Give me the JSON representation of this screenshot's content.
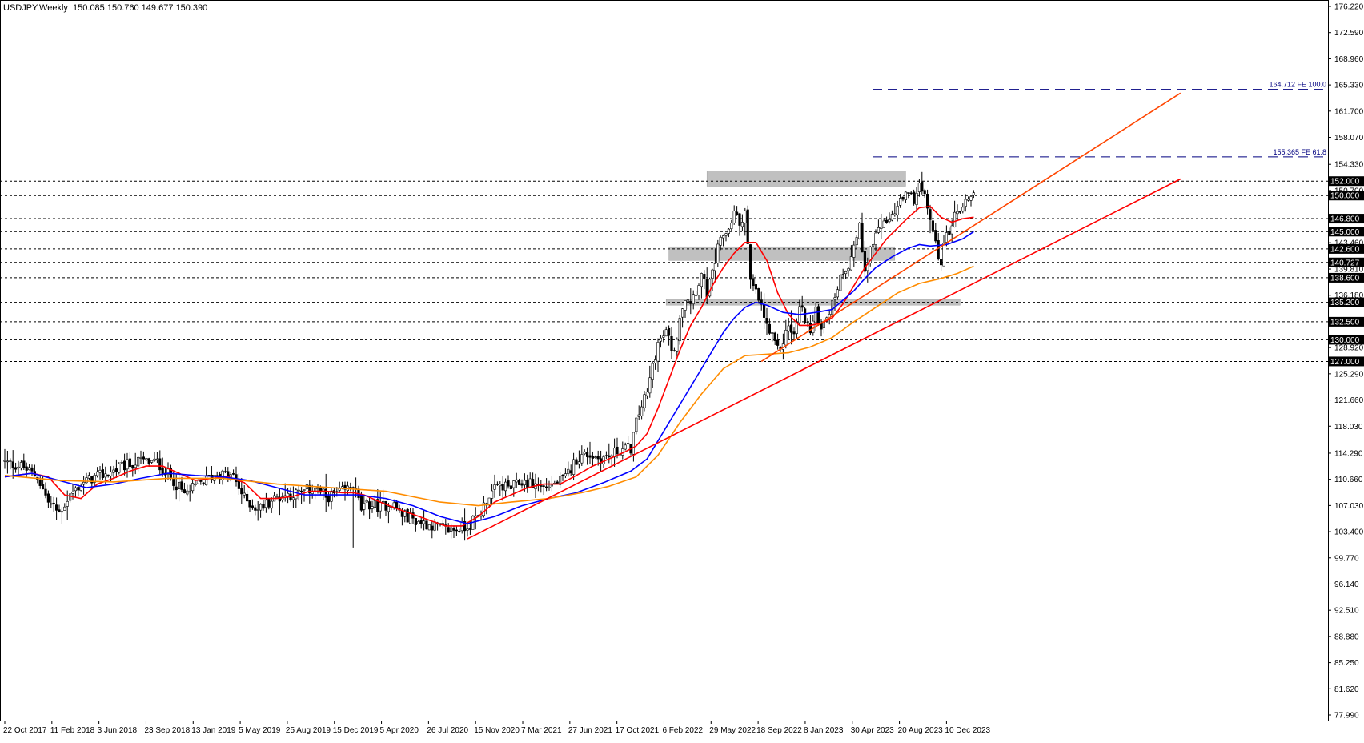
{
  "header": {
    "symbol_label": "USDJPY,Weekly",
    "ohlc_values": "150.085 150.760 149.677 150.390"
  },
  "chart_data": {
    "type": "candlestick",
    "symbol": "USDJPY",
    "timeframe": "Weekly",
    "last_bar": {
      "open": 150.085,
      "high": 150.76,
      "low": 149.677,
      "close": 150.39
    },
    "ylim": [
      77.99,
      176.22
    ],
    "y_ticks": [
      "176.220",
      "172.590",
      "168.960",
      "165.330",
      "161.700",
      "158.070",
      "154.330",
      "150.700",
      "146.800",
      "143.460",
      "139.810",
      "136.180",
      "132.500",
      "128.920",
      "125.290",
      "121.660",
      "118.030",
      "114.290",
      "110.660",
      "107.030",
      "103.400",
      "99.770",
      "96.140",
      "92.510",
      "88.880",
      "85.250",
      "81.620",
      "77.990"
    ],
    "x_tick_labels": [
      "22 Oct 2017",
      "11 Feb 2018",
      "3 Jun 2018",
      "23 Sep 2018",
      "13 Jan 2019",
      "5 May 2019",
      "25 Aug 2019",
      "15 Dec 2019",
      "5 Apr 2020",
      "26 Jul 2020",
      "15 Nov 2020",
      "7 Mar 2021",
      "27 Jun 2021",
      "17 Oct 2021",
      "6 Feb 2022",
      "29 May 2022",
      "18 Sep 2022",
      "8 Jan 2023",
      "30 Apr 2023",
      "20 Aug 2023",
      "10 Dec 2023"
    ],
    "horizontal_levels": [
      {
        "value": 152.0,
        "label": "152.000"
      },
      {
        "value": 150.0,
        "label": "150.000"
      },
      {
        "value": 146.8,
        "label": "146.800"
      },
      {
        "value": 145.0,
        "label": "145.000"
      },
      {
        "value": 142.6,
        "label": "142.600"
      },
      {
        "value": 140.727,
        "label": "140.727"
      },
      {
        "value": 138.6,
        "label": "138.600"
      },
      {
        "value": 135.2,
        "label": "135.200"
      },
      {
        "value": 132.5,
        "label": "132.500"
      },
      {
        "value": 130.0,
        "label": "130.000"
      },
      {
        "value": 127.0,
        "label": "127.000"
      }
    ],
    "fibo_expansion": [
      {
        "value": 164.712,
        "label": "164.712 FE 100.0"
      },
      {
        "value": 155.365,
        "label": "155.365 FE 61.8"
      }
    ],
    "zones": [
      {
        "week_start": 258,
        "week_end": 331,
        "low": 151.3,
        "high": 153.4
      },
      {
        "week_start": 244,
        "week_end": 327,
        "low": 141.0,
        "high": 142.9
      },
      {
        "week_start": 243,
        "week_end": 351,
        "low": 134.8,
        "high": 135.6
      }
    ],
    "trendlines": [
      {
        "color": "#ff0000",
        "from": {
          "week": 170,
          "price": 102.4
        },
        "to": {
          "week": 432,
          "price": 152.3
        }
      },
      {
        "color": "#ff4500",
        "from": {
          "week": 278,
          "price": 127.0
        },
        "to": {
          "week": 432,
          "price": 164.2
        }
      }
    ],
    "series": [
      {
        "kind": "close",
        "points": [
          [
            0,
            113.0
          ],
          [
            6,
            112.5
          ],
          [
            12,
            111.0
          ],
          [
            16,
            107.5
          ],
          [
            20,
            106.0
          ],
          [
            24,
            108.5
          ],
          [
            28,
            110.0
          ],
          [
            32,
            110.8
          ],
          [
            38,
            111.5
          ],
          [
            44,
            112.5
          ],
          [
            50,
            113.2
          ],
          [
            56,
            113.0
          ],
          [
            62,
            110.5
          ],
          [
            66,
            108.5
          ],
          [
            72,
            110.2
          ],
          [
            78,
            111.5
          ],
          [
            84,
            111.0
          ],
          [
            88,
            108.0
          ],
          [
            93,
            106.5
          ],
          [
            98,
            107.8
          ],
          [
            103,
            108.5
          ],
          [
            108,
            108.7
          ],
          [
            114,
            109.5
          ],
          [
            118,
            108.2
          ],
          [
            125,
            109.0
          ],
          [
            128,
            110.0
          ],
          [
            131,
            106.5
          ],
          [
            134,
            107.2
          ],
          [
            138,
            106.8
          ],
          [
            142,
            107.5
          ],
          [
            146,
            105.8
          ],
          [
            152,
            104.8
          ],
          [
            158,
            104.2
          ],
          [
            162,
            103.6
          ],
          [
            166,
            103.8
          ],
          [
            170,
            104.2
          ],
          [
            174,
            105.5
          ],
          [
            178,
            108.5
          ],
          [
            182,
            109.8
          ],
          [
            186,
            109.5
          ],
          [
            190,
            110.3
          ],
          [
            194,
            110.0
          ],
          [
            198,
            109.6
          ],
          [
            202,
            110.0
          ],
          [
            206,
            110.8
          ],
          [
            210,
            113.5
          ],
          [
            214,
            114.2
          ],
          [
            218,
            113.6
          ],
          [
            222,
            113.8
          ],
          [
            226,
            114.8
          ],
          [
            230,
            115.0
          ],
          [
            232,
            118.5
          ],
          [
            234,
            121.0
          ],
          [
            236,
            122.5
          ],
          [
            238,
            126.5
          ],
          [
            240,
            129.5
          ],
          [
            243,
            131.0
          ],
          [
            246,
            128.0
          ],
          [
            248,
            133.5
          ],
          [
            250,
            136.0
          ],
          [
            252,
            135.5
          ],
          [
            254,
            137.0
          ],
          [
            256,
            139.0
          ],
          [
            258,
            136.5
          ],
          [
            260,
            139.0
          ],
          [
            262,
            142.5
          ],
          [
            264,
            144.5
          ],
          [
            266,
            145.5
          ],
          [
            268,
            147.6
          ],
          [
            270,
            146.0
          ],
          [
            272,
            148.0
          ],
          [
            274,
            138.0
          ],
          [
            276,
            136.5
          ],
          [
            278,
            134.5
          ],
          [
            280,
            131.8
          ],
          [
            282,
            130.2
          ],
          [
            284,
            128.5
          ],
          [
            286,
            129.8
          ],
          [
            288,
            132.0
          ],
          [
            290,
            130.5
          ],
          [
            292,
            134.5
          ],
          [
            294,
            133.2
          ],
          [
            296,
            131.0
          ],
          [
            298,
            133.8
          ],
          [
            300,
            132.0
          ],
          [
            302,
            133.5
          ],
          [
            304,
            134.8
          ],
          [
            306,
            137.5
          ],
          [
            308,
            139.6
          ],
          [
            310,
            140.5
          ],
          [
            312,
            143.0
          ],
          [
            314,
            145.5
          ],
          [
            316,
            140.0
          ],
          [
            318,
            142.5
          ],
          [
            320,
            144.6
          ],
          [
            322,
            146.0
          ],
          [
            324,
            145.5
          ],
          [
            326,
            147.5
          ],
          [
            328,
            148.3
          ],
          [
            330,
            149.5
          ],
          [
            332,
            150.0
          ],
          [
            334,
            149.6
          ],
          [
            336,
            151.5
          ],
          [
            338,
            149.5
          ],
          [
            340,
            147.0
          ],
          [
            342,
            143.0
          ],
          [
            344,
            141.0
          ],
          [
            346,
            144.5
          ],
          [
            348,
            146.2
          ],
          [
            350,
            148.0
          ],
          [
            352,
            148.4
          ],
          [
            354,
            149.8
          ],
          [
            356,
            150.39
          ]
        ]
      },
      {
        "name": "MA short",
        "color": "#ff0000",
        "points": [
          [
            0,
            111.0
          ],
          [
            10,
            111.5
          ],
          [
            16,
            111.0
          ],
          [
            22,
            108.5
          ],
          [
            28,
            108.0
          ],
          [
            34,
            110.0
          ],
          [
            40,
            110.8
          ],
          [
            46,
            111.8
          ],
          [
            52,
            112.5
          ],
          [
            58,
            112.5
          ],
          [
            64,
            111.5
          ],
          [
            70,
            110.5
          ],
          [
            76,
            110.8
          ],
          [
            82,
            111.0
          ],
          [
            88,
            110.2
          ],
          [
            94,
            108.0
          ],
          [
            100,
            108.0
          ],
          [
            106,
            108.3
          ],
          [
            112,
            109.0
          ],
          [
            118,
            109.0
          ],
          [
            124,
            108.8
          ],
          [
            128,
            108.8
          ],
          [
            132,
            108.5
          ],
          [
            138,
            107.5
          ],
          [
            144,
            106.6
          ],
          [
            150,
            105.8
          ],
          [
            156,
            105.0
          ],
          [
            162,
            104.2
          ],
          [
            168,
            104.2
          ],
          [
            174,
            105.5
          ],
          [
            180,
            107.5
          ],
          [
            186,
            108.5
          ],
          [
            192,
            109.5
          ],
          [
            198,
            110.0
          ],
          [
            204,
            110.0
          ],
          [
            210,
            111.2
          ],
          [
            216,
            112.5
          ],
          [
            222,
            113.5
          ],
          [
            228,
            114.5
          ],
          [
            232,
            115.3
          ],
          [
            236,
            117.0
          ],
          [
            240,
            120.5
          ],
          [
            244,
            124.5
          ],
          [
            248,
            128.5
          ],
          [
            252,
            132.0
          ],
          [
            256,
            134.5
          ],
          [
            260,
            137.5
          ],
          [
            264,
            140.0
          ],
          [
            268,
            142.0
          ],
          [
            272,
            143.5
          ],
          [
            276,
            143.5
          ],
          [
            280,
            141.0
          ],
          [
            284,
            136.5
          ],
          [
            288,
            133.5
          ],
          [
            292,
            132.0
          ],
          [
            296,
            132.0
          ],
          [
            300,
            132.3
          ],
          [
            304,
            133.0
          ],
          [
            308,
            135.0
          ],
          [
            312,
            137.5
          ],
          [
            316,
            140.0
          ],
          [
            320,
            142.0
          ],
          [
            324,
            144.0
          ],
          [
            328,
            145.5
          ],
          [
            332,
            147.0
          ],
          [
            336,
            148.3
          ],
          [
            340,
            148.5
          ],
          [
            344,
            147.0
          ],
          [
            348,
            146.3
          ],
          [
            352,
            146.8
          ],
          [
            356,
            147.0
          ]
        ]
      },
      {
        "name": "MA medium",
        "color": "#0000ff",
        "points": [
          [
            0,
            111.0
          ],
          [
            10,
            111.5
          ],
          [
            20,
            110.5
          ],
          [
            30,
            109.5
          ],
          [
            40,
            110.0
          ],
          [
            50,
            110.8
          ],
          [
            60,
            111.5
          ],
          [
            70,
            111.2
          ],
          [
            80,
            111.0
          ],
          [
            90,
            110.5
          ],
          [
            100,
            109.5
          ],
          [
            110,
            108.5
          ],
          [
            120,
            108.5
          ],
          [
            130,
            108.5
          ],
          [
            140,
            108.0
          ],
          [
            150,
            107.0
          ],
          [
            160,
            105.5
          ],
          [
            170,
            104.5
          ],
          [
            180,
            105.5
          ],
          [
            190,
            107.0
          ],
          [
            200,
            108.0
          ],
          [
            210,
            108.8
          ],
          [
            220,
            110.2
          ],
          [
            230,
            111.8
          ],
          [
            236,
            113.5
          ],
          [
            240,
            116.0
          ],
          [
            244,
            118.5
          ],
          [
            248,
            121.0
          ],
          [
            252,
            123.5
          ],
          [
            256,
            126.0
          ],
          [
            260,
            128.5
          ],
          [
            264,
            131.0
          ],
          [
            268,
            133.0
          ],
          [
            272,
            134.5
          ],
          [
            276,
            135.2
          ],
          [
            280,
            134.8
          ],
          [
            286,
            133.8
          ],
          [
            292,
            133.5
          ],
          [
            298,
            133.8
          ],
          [
            304,
            134.2
          ],
          [
            308,
            135.5
          ],
          [
            312,
            136.8
          ],
          [
            316,
            138.5
          ],
          [
            320,
            140.0
          ],
          [
            326,
            141.5
          ],
          [
            332,
            142.7
          ],
          [
            336,
            143.2
          ],
          [
            340,
            143.0
          ],
          [
            346,
            143.2
          ],
          [
            352,
            144.0
          ],
          [
            356,
            145.0
          ]
        ]
      },
      {
        "name": "MA long",
        "color": "#ff8c00",
        "points": [
          [
            0,
            111.2
          ],
          [
            20,
            110.5
          ],
          [
            40,
            110.3
          ],
          [
            60,
            110.8
          ],
          [
            80,
            110.8
          ],
          [
            100,
            110.0
          ],
          [
            120,
            109.5
          ],
          [
            140,
            109.0
          ],
          [
            160,
            107.5
          ],
          [
            174,
            107.0
          ],
          [
            186,
            107.5
          ],
          [
            200,
            108.0
          ],
          [
            212,
            108.8
          ],
          [
            222,
            109.7
          ],
          [
            232,
            111.0
          ],
          [
            240,
            114.0
          ],
          [
            248,
            118.5
          ],
          [
            256,
            122.5
          ],
          [
            264,
            126.0
          ],
          [
            272,
            127.8
          ],
          [
            280,
            128.0
          ],
          [
            288,
            128.2
          ],
          [
            296,
            129.0
          ],
          [
            304,
            130.3
          ],
          [
            312,
            132.5
          ],
          [
            320,
            134.5
          ],
          [
            328,
            136.5
          ],
          [
            336,
            137.8
          ],
          [
            344,
            138.5
          ],
          [
            350,
            139.2
          ],
          [
            356,
            140.2
          ]
        ]
      }
    ]
  }
}
